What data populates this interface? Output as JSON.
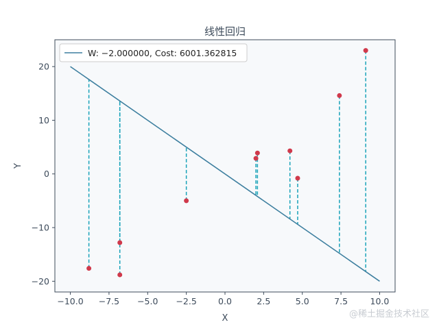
{
  "chart_data": {
    "type": "scatter",
    "title": "线性回归",
    "xlabel": "X",
    "ylabel": "Y",
    "xlim": [
      -11,
      11
    ],
    "ylim": [
      -22,
      25
    ],
    "xticks": [
      -10.0,
      -7.5,
      -5.0,
      -2.5,
      0.0,
      2.5,
      5.0,
      7.5,
      10.0
    ],
    "xtick_labels": [
      "−10.0",
      "−7.5",
      "−5.0",
      "−2.5",
      "0.0",
      "2.5",
      "5.0",
      "7.5",
      "10.0"
    ],
    "yticks": [
      -20,
      -10,
      0,
      10,
      20
    ],
    "ytick_labels": [
      "−20",
      "−10",
      "0",
      "10",
      "20"
    ],
    "grid": false,
    "legend_position": "top-left",
    "points": [
      {
        "x": -8.8,
        "y": -17.6
      },
      {
        "x": -6.8,
        "y": -12.8
      },
      {
        "x": -6.8,
        "y": -18.8
      },
      {
        "x": -2.5,
        "y": -5.0
      },
      {
        "x": 2.0,
        "y": 2.9
      },
      {
        "x": 2.1,
        "y": 3.9
      },
      {
        "x": 4.2,
        "y": 4.3
      },
      {
        "x": 4.7,
        "y": -0.8
      },
      {
        "x": 7.4,
        "y": 14.6
      },
      {
        "x": 9.1,
        "y": 23.0
      }
    ],
    "regression_line": {
      "label": "W: −2.000000, Cost: 6001.362815",
      "slope": -2.0,
      "x_range": [
        -10,
        10
      ]
    },
    "colors": {
      "points": "#d0394b",
      "line": "#3d7f9f",
      "residuals": "#17a2b8",
      "plot_background": "#f7f9fb",
      "axes": "#3c4a5a"
    }
  },
  "watermark": "@稀土掘金技术社区"
}
